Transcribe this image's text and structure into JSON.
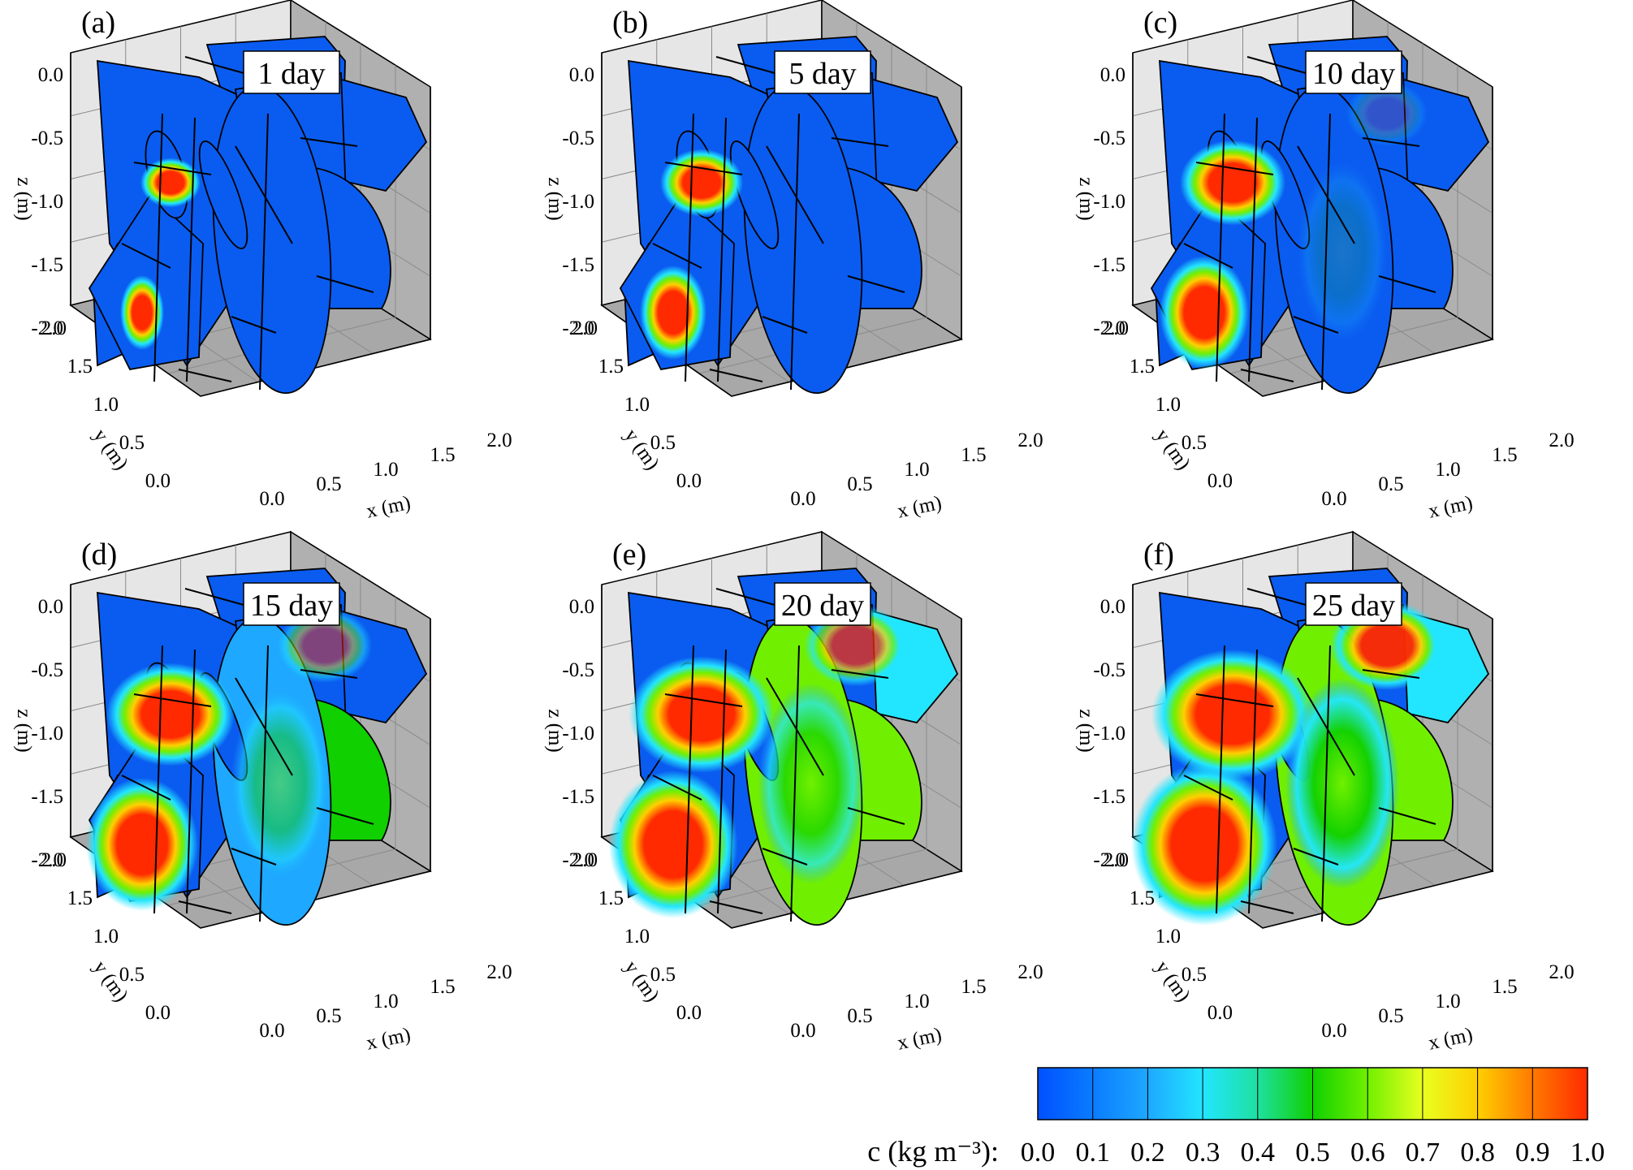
{
  "panels": [
    {
      "letter": "(a)",
      "time": "1 day",
      "level": 0.1
    },
    {
      "letter": "(b)",
      "time": "5 day",
      "level": 0.3
    },
    {
      "letter": "(c)",
      "time": "10 day",
      "level": 0.5
    },
    {
      "letter": "(d)",
      "time": "15 day",
      "level": 0.7
    },
    {
      "letter": "(e)",
      "time": "20 day",
      "level": 0.85
    },
    {
      "letter": "(f)",
      "time": "25 day",
      "level": 1.0
    }
  ],
  "axes": {
    "z_label": "z (m)",
    "y_label": "y (m)",
    "x_label": "x (m)",
    "z_ticks": [
      "0.0",
      "-0.5",
      "-1.0",
      "-1.5",
      "-2.0"
    ],
    "y_ticks": [
      "2.0",
      "1.5",
      "1.0",
      "0.5",
      "0.0"
    ],
    "x_ticks": [
      "0.0",
      "0.5",
      "1.0",
      "1.5",
      "2.0"
    ]
  },
  "colorbar": {
    "label": "c (kg m⁻³):",
    "ticks": [
      "0.0",
      "0.1",
      "0.2",
      "0.3",
      "0.4",
      "0.5",
      "0.6",
      "0.7",
      "0.8",
      "0.9",
      "1.0"
    ],
    "colors": [
      "#0050ff",
      "#0a7cff",
      "#1ea8ff",
      "#22e6ff",
      "#1ee0a0",
      "#10d000",
      "#70f000",
      "#e8ff20",
      "#ffcf00",
      "#ff7a00",
      "#ff2a00"
    ]
  },
  "colors": {
    "base_blue": "#0a5cf0",
    "hot": "#ff2a00",
    "wall": "#e6e6e6",
    "floor": "#a8a8a8",
    "side": "#b0b0b0"
  }
}
